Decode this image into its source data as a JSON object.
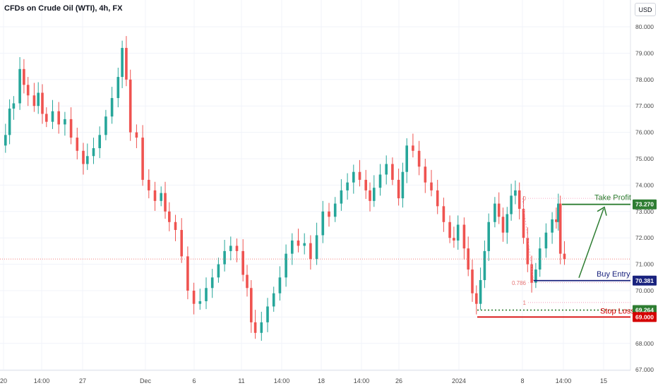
{
  "title": "CFDs on Crude Oil (WTI), 4h, FX",
  "currency": "USD",
  "colors": {
    "up": "#26a69a",
    "down": "#ef5350",
    "take_profit": "#2e7d32",
    "buy_entry": "#1a237e",
    "stop_loss": "#d50000",
    "price_line": "#ef5350",
    "text": "#131722",
    "axis_text": "#4a4a4a"
  },
  "chart_data": {
    "type": "candlestick",
    "ylim": [
      66.6,
      80.6
    ],
    "y_ticks": [
      "80.000",
      "79.000",
      "78.000",
      "77.000",
      "76.000",
      "75.000",
      "74.000",
      "73.000",
      "72.000",
      "71.000",
      "70.000",
      "69.000",
      "68.000",
      "67.000"
    ],
    "x_ticks": [
      "20",
      "14:00",
      "27",
      "Dec",
      "6",
      "11",
      "14:00",
      "18",
      "14:00",
      "26",
      "2024",
      "8",
      "14:00",
      "15"
    ],
    "current_price": 71.2,
    "series": [
      {
        "name": "CFDs on Crude Oil (WTI)",
        "points": [
          [
            0,
            75.5
          ],
          [
            0.1,
            75.9
          ],
          [
            0.2,
            76.9
          ],
          [
            0.3,
            77.1
          ],
          [
            0.45,
            78.4
          ],
          [
            0.55,
            77.8
          ],
          [
            0.65,
            77.4
          ],
          [
            0.8,
            77.0
          ],
          [
            0.9,
            77.5
          ],
          [
            1.0,
            76.7
          ],
          [
            1.1,
            76.4
          ],
          [
            1.25,
            76.8
          ],
          [
            1.4,
            76.3
          ],
          [
            1.55,
            76.5
          ],
          [
            1.7,
            75.8
          ],
          [
            1.85,
            75.3
          ],
          [
            2.0,
            74.8
          ],
          [
            2.1,
            75.1
          ],
          [
            2.25,
            75.4
          ],
          [
            2.4,
            75.9
          ],
          [
            2.55,
            76.6
          ],
          [
            2.7,
            77.3
          ],
          [
            2.85,
            78.1
          ],
          [
            2.95,
            79.2
          ],
          [
            3.05,
            78.0
          ],
          [
            3.15,
            76.0
          ],
          [
            3.3,
            75.8
          ],
          [
            3.45,
            74.2
          ],
          [
            3.6,
            73.8
          ],
          [
            3.75,
            73.4
          ],
          [
            3.9,
            73.7
          ],
          [
            4.0,
            73.0
          ],
          [
            4.1,
            72.6
          ],
          [
            4.25,
            72.3
          ],
          [
            4.4,
            71.3
          ],
          [
            4.55,
            70.0
          ],
          [
            4.7,
            69.5
          ],
          [
            4.85,
            69.6
          ],
          [
            5.0,
            70.1
          ],
          [
            5.15,
            70.5
          ],
          [
            5.3,
            71.0
          ],
          [
            5.45,
            71.5
          ],
          [
            5.6,
            71.7
          ],
          [
            5.75,
            71.5
          ],
          [
            5.9,
            70.6
          ],
          [
            6.0,
            70.1
          ],
          [
            6.1,
            68.8
          ],
          [
            6.2,
            68.4
          ],
          [
            6.35,
            68.8
          ],
          [
            6.5,
            69.4
          ],
          [
            6.65,
            69.9
          ],
          [
            6.8,
            70.5
          ],
          [
            6.95,
            71.4
          ],
          [
            7.1,
            71.9
          ],
          [
            7.25,
            71.7
          ],
          [
            7.4,
            71.8
          ],
          [
            7.55,
            71.2
          ],
          [
            7.7,
            72.1
          ],
          [
            7.85,
            73.0
          ],
          [
            8.0,
            72.8
          ],
          [
            8.15,
            73.3
          ],
          [
            8.3,
            73.8
          ],
          [
            8.45,
            74.1
          ],
          [
            8.6,
            74.5
          ],
          [
            8.75,
            74.2
          ],
          [
            8.9,
            73.8
          ],
          [
            9.0,
            73.4
          ],
          [
            9.1,
            73.9
          ],
          [
            9.25,
            74.4
          ],
          [
            9.4,
            74.8
          ],
          [
            9.55,
            74.2
          ],
          [
            9.7,
            73.5
          ],
          [
            9.8,
            74.5
          ],
          [
            9.9,
            75.5
          ],
          [
            10.05,
            75.3
          ],
          [
            10.2,
            74.7
          ],
          [
            10.35,
            74.1
          ],
          [
            10.5,
            73.8
          ],
          [
            10.65,
            73.2
          ],
          [
            10.8,
            72.6
          ],
          [
            10.95,
            72.0
          ],
          [
            11.05,
            71.9
          ],
          [
            11.15,
            72.5
          ],
          [
            11.3,
            71.6
          ],
          [
            11.4,
            70.8
          ],
          [
            11.5,
            69.9
          ],
          [
            11.6,
            69.5
          ],
          [
            11.7,
            70.4
          ],
          [
            11.8,
            71.5
          ],
          [
            11.9,
            72.6
          ],
          [
            12.05,
            73.3
          ],
          [
            12.15,
            72.8
          ],
          [
            12.25,
            72.2
          ],
          [
            12.35,
            72.9
          ],
          [
            12.45,
            73.6
          ],
          [
            12.55,
            73.8
          ],
          [
            12.65,
            73.1
          ],
          [
            12.75,
            72.0
          ],
          [
            12.85,
            71.0
          ],
          [
            12.95,
            70.3
          ],
          [
            13.05,
            70.8
          ],
          [
            13.15,
            71.6
          ],
          [
            13.3,
            72.2
          ],
          [
            13.45,
            72.7
          ],
          [
            13.55,
            72.6
          ],
          [
            13.6,
            73.3
          ],
          [
            13.65,
            71.4
          ],
          [
            13.75,
            71.2
          ]
        ]
      }
    ],
    "annotations": {
      "take_profit": {
        "label": "Take Profit",
        "value": "73.270"
      },
      "buy_entry": {
        "label": "Buy Entry",
        "value": "70.381"
      },
      "stop_loss": {
        "label": "Stop Loss",
        "value": "69.000"
      },
      "extra_level": {
        "value": "69.264"
      },
      "fib_levels": [
        {
          "label": "0",
          "value": 73.5
        },
        {
          "label": "0.786",
          "value": 70.3
        },
        {
          "label": "1",
          "value": 69.55
        }
      ]
    }
  }
}
